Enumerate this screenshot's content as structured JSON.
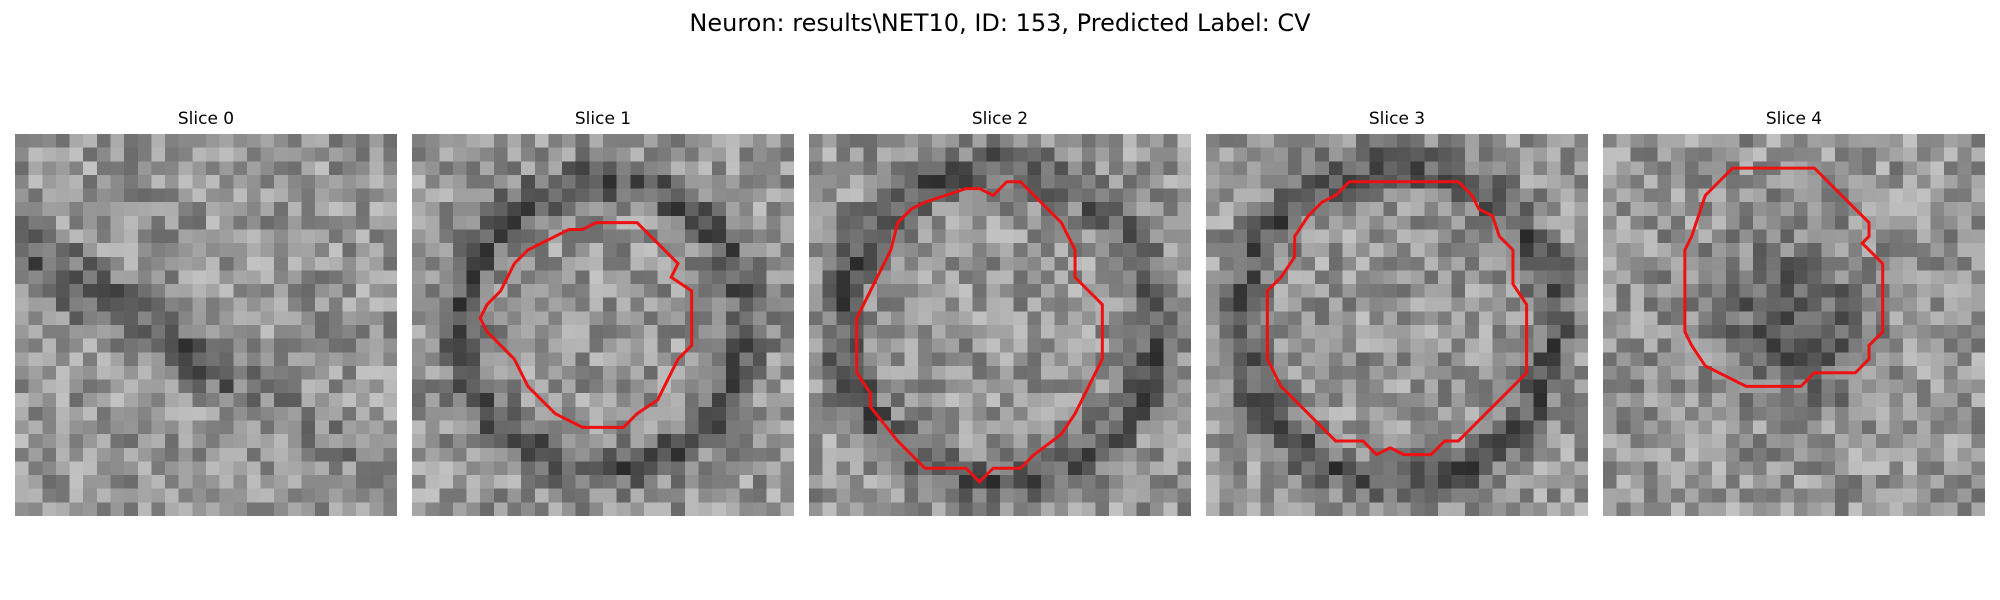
{
  "figure": {
    "title": "Neuron: results\\NET10, ID: 153, Predicted Label: CV",
    "contour_color": "#ee1111"
  },
  "slices": [
    {
      "label": "Slice 0",
      "has_contour": false,
      "seed": 11,
      "ring_radius": 0,
      "dark_center": false,
      "contour": []
    },
    {
      "label": "Slice 1",
      "has_contour": true,
      "seed": 23,
      "ring_radius": 10.5,
      "dark_center": false,
      "contour": [
        [
          13.5,
          6.5
        ],
        [
          16.5,
          6.5
        ],
        [
          18.5,
          8.5
        ],
        [
          19.5,
          9.5
        ],
        [
          19.0,
          10.5
        ],
        [
          20.5,
          11.5
        ],
        [
          20.5,
          15.5
        ],
        [
          19.5,
          16.5
        ],
        [
          18.0,
          19.5
        ],
        [
          16.5,
          20.5
        ],
        [
          15.5,
          21.5
        ],
        [
          12.5,
          21.5
        ],
        [
          10.5,
          20.5
        ],
        [
          8.5,
          18.5
        ],
        [
          7.5,
          16.5
        ],
        [
          5.5,
          14.5
        ],
        [
          5.0,
          13.5
        ],
        [
          5.5,
          12.5
        ],
        [
          6.5,
          11.5
        ],
        [
          7.5,
          9.5
        ],
        [
          8.5,
          8.5
        ],
        [
          9.5,
          8.0
        ],
        [
          10.5,
          7.5
        ],
        [
          11.5,
          7.0
        ],
        [
          12.5,
          7.0
        ]
      ]
    },
    {
      "label": "Slice 2",
      "has_contour": true,
      "seed": 37,
      "ring_radius": 11.5,
      "dark_center": false,
      "contour": [
        [
          12.5,
          4.0
        ],
        [
          13.5,
          4.5
        ],
        [
          14.5,
          3.5
        ],
        [
          15.5,
          3.5
        ],
        [
          17.5,
          5.5
        ],
        [
          18.5,
          6.5
        ],
        [
          19.5,
          8.5
        ],
        [
          19.5,
          10.5
        ],
        [
          21.5,
          12.5
        ],
        [
          21.5,
          16.5
        ],
        [
          20.5,
          18.5
        ],
        [
          19.5,
          20.5
        ],
        [
          18.5,
          22.0
        ],
        [
          16.5,
          23.5
        ],
        [
          15.5,
          24.5
        ],
        [
          13.5,
          24.5
        ],
        [
          12.5,
          25.5
        ],
        [
          11.5,
          24.5
        ],
        [
          8.5,
          24.5
        ],
        [
          7.5,
          23.5
        ],
        [
          6.5,
          22.5
        ],
        [
          4.5,
          20.0
        ],
        [
          4.5,
          19.0
        ],
        [
          3.5,
          17.5
        ],
        [
          3.5,
          13.5
        ],
        [
          4.5,
          11.5
        ],
        [
          5.5,
          9.5
        ],
        [
          6.0,
          8.5
        ],
        [
          6.5,
          6.5
        ],
        [
          7.5,
          5.5
        ],
        [
          8.5,
          5.0
        ],
        [
          11.5,
          4.0
        ]
      ]
    },
    {
      "label": "Slice 3",
      "has_contour": true,
      "seed": 53,
      "ring_radius": 11.5,
      "dark_center": false,
      "contour": [
        [
          10.5,
          3.5
        ],
        [
          18.5,
          3.5
        ],
        [
          19.5,
          4.5
        ],
        [
          20.0,
          5.5
        ],
        [
          21.0,
          6.0
        ],
        [
          21.5,
          7.5
        ],
        [
          22.5,
          8.5
        ],
        [
          22.5,
          11.0
        ],
        [
          23.5,
          12.5
        ],
        [
          23.5,
          17.5
        ],
        [
          22.5,
          18.5
        ],
        [
          20.5,
          20.5
        ],
        [
          18.5,
          22.5
        ],
        [
          17.5,
          22.5
        ],
        [
          16.5,
          23.5
        ],
        [
          14.5,
          23.5
        ],
        [
          13.5,
          23.0
        ],
        [
          12.5,
          23.5
        ],
        [
          11.5,
          22.5
        ],
        [
          9.5,
          22.5
        ],
        [
          6.5,
          19.5
        ],
        [
          5.5,
          18.5
        ],
        [
          4.5,
          16.5
        ],
        [
          4.5,
          11.5
        ],
        [
          5.5,
          10.5
        ],
        [
          6.5,
          9.0
        ],
        [
          6.5,
          7.5
        ],
        [
          7.5,
          6.0
        ],
        [
          8.5,
          5.0
        ],
        [
          9.5,
          4.5
        ]
      ]
    },
    {
      "label": "Slice 4",
      "has_contour": true,
      "seed": 71,
      "ring_radius": 0,
      "dark_center": true,
      "contour": [
        [
          9.5,
          2.5
        ],
        [
          15.5,
          2.5
        ],
        [
          17.5,
          4.5
        ],
        [
          18.5,
          5.5
        ],
        [
          19.5,
          6.5
        ],
        [
          19.5,
          7.5
        ],
        [
          19.0,
          8.0
        ],
        [
          19.5,
          8.5
        ],
        [
          20.5,
          9.5
        ],
        [
          20.5,
          14.5
        ],
        [
          19.5,
          15.5
        ],
        [
          19.5,
          16.5
        ],
        [
          18.5,
          17.5
        ],
        [
          15.5,
          17.5
        ],
        [
          14.5,
          18.5
        ],
        [
          10.5,
          18.5
        ],
        [
          9.5,
          18.0
        ],
        [
          7.5,
          17.0
        ],
        [
          6.5,
          15.5
        ],
        [
          6.0,
          14.5
        ],
        [
          6.0,
          12.5
        ],
        [
          6.0,
          8.5
        ],
        [
          6.5,
          7.5
        ],
        [
          7.5,
          4.5
        ],
        [
          8.5,
          3.5
        ]
      ]
    }
  ]
}
